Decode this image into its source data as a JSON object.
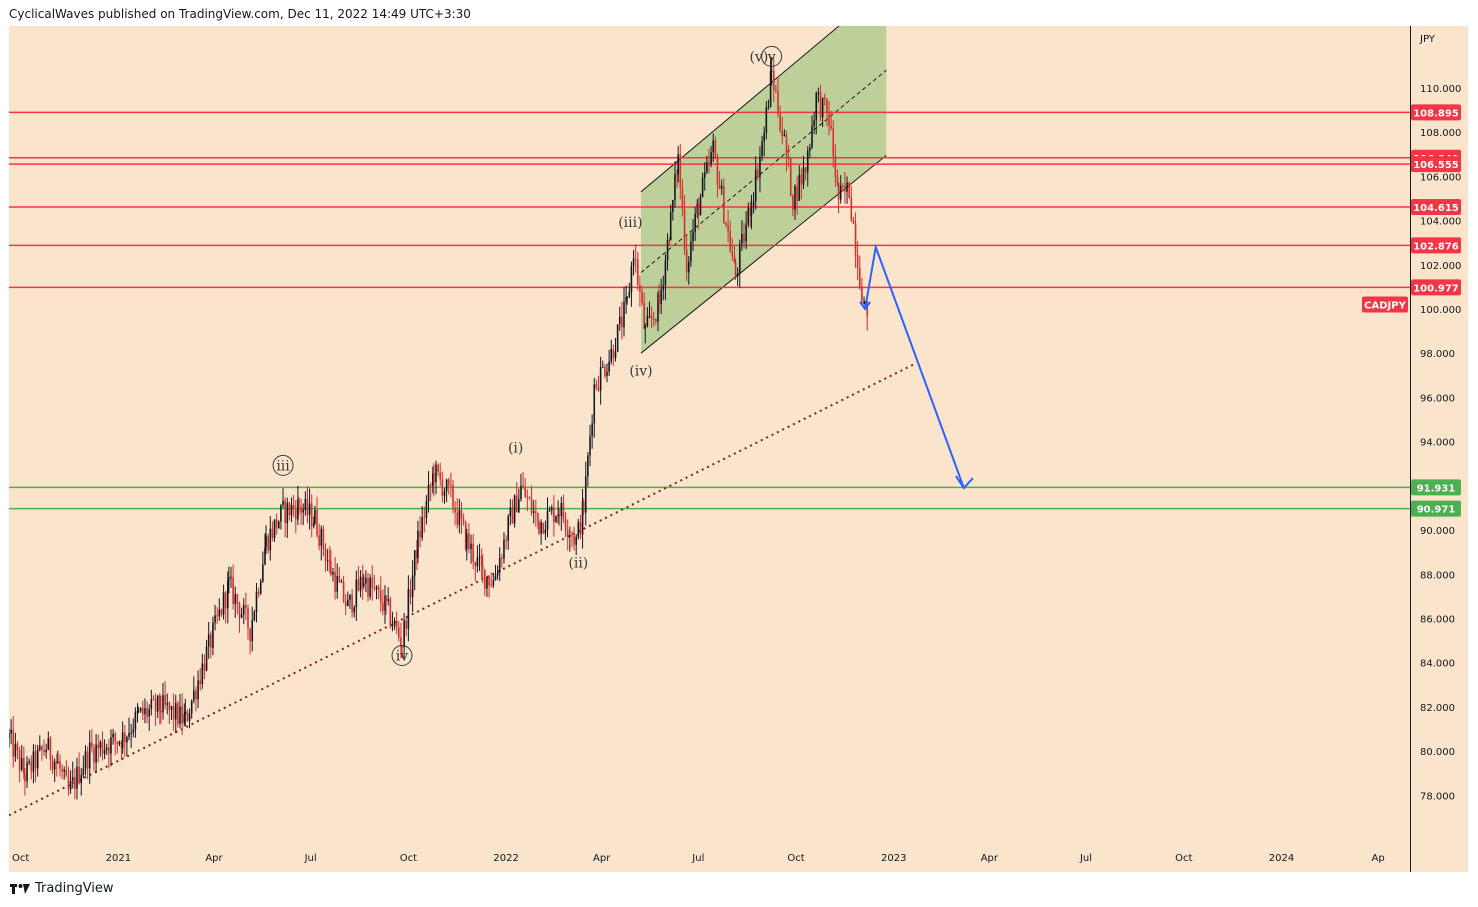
{
  "header": {
    "text": "CyclicalWaves published on TradingView.com, Dec 11, 2022 14:49 UTC+3:30"
  },
  "footer": {
    "brand": "TradingView"
  },
  "colors": {
    "background": "#fae4cc",
    "resistance_line": "#f23645",
    "support_line": "#4caf50",
    "projection_arrow": "#2962ff",
    "trendline": "#8b1a1a",
    "channel_fill": "#a8c98a",
    "bull_candle": "#131722",
    "bear_candle": "#d32f2f"
  },
  "chart_data": {
    "type": "candlestick",
    "symbol": "CADJPY",
    "currency": "JPY",
    "last_price_label": "CADJPY",
    "y_axis": {
      "range": [
        75.8,
        112.8
      ],
      "ticks": [
        "78.000",
        "80.000",
        "82.000",
        "84.000",
        "86.000",
        "88.000",
        "90.000",
        "94.000",
        "96.000",
        "98.000",
        "100.000",
        "102.000",
        "104.000",
        "106.000",
        "108.000",
        "110.000"
      ],
      "tick_values": [
        78,
        80,
        82,
        84,
        86,
        88,
        90,
        94,
        96,
        98,
        100,
        102,
        104,
        106,
        108,
        110
      ]
    },
    "x_axis": {
      "range": [
        "2020-09-20",
        "2024-05-01"
      ],
      "ticks": [
        {
          "label": "Oct",
          "date": "2020-10-01"
        },
        {
          "label": "2021",
          "date": "2021-01-01"
        },
        {
          "label": "Apr",
          "date": "2021-04-01"
        },
        {
          "label": "Jul",
          "date": "2021-07-01"
        },
        {
          "label": "Oct",
          "date": "2021-10-01"
        },
        {
          "label": "2022",
          "date": "2022-01-01"
        },
        {
          "label": "Apr",
          "date": "2022-04-01"
        },
        {
          "label": "Jul",
          "date": "2022-07-01"
        },
        {
          "label": "Oct",
          "date": "2022-10-01"
        },
        {
          "label": "2023",
          "date": "2023-01-01"
        },
        {
          "label": "Apr",
          "date": "2023-04-01"
        },
        {
          "label": "Jul",
          "date": "2023-07-01"
        },
        {
          "label": "Oct",
          "date": "2023-10-01"
        },
        {
          "label": "2024",
          "date": "2024-01-01"
        },
        {
          "label": "Ap",
          "date": "2024-04-01"
        }
      ]
    },
    "price_path": [
      [
        "2020-09-20",
        80.6
      ],
      [
        "2020-10-05",
        78.9
      ],
      [
        "2020-10-25",
        80.2
      ],
      [
        "2020-11-05",
        79.4
      ],
      [
        "2020-11-15",
        78.1
      ],
      [
        "2020-12-05",
        80.0
      ],
      [
        "2021-01-05",
        80.6
      ],
      [
        "2021-01-20",
        81.6
      ],
      [
        "2021-02-10",
        82.0
      ],
      [
        "2021-03-05",
        81.4
      ],
      [
        "2021-03-25",
        84.4
      ],
      [
        "2021-04-15",
        87.5
      ],
      [
        "2021-05-05",
        85.5
      ],
      [
        "2021-05-20",
        89.5
      ],
      [
        "2021-06-05",
        90.8
      ],
      [
        "2021-06-20",
        91.1
      ],
      [
        "2021-07-05",
        90.5
      ],
      [
        "2021-07-20",
        88.2
      ],
      [
        "2021-08-05",
        86.5
      ],
      [
        "2021-08-20",
        87.8
      ],
      [
        "2021-09-10",
        86.5
      ],
      [
        "2021-09-25",
        84.9
      ],
      [
        "2021-10-10",
        89.5
      ],
      [
        "2021-10-25",
        92.6
      ],
      [
        "2021-11-10",
        91.5
      ],
      [
        "2021-11-25",
        89.5
      ],
      [
        "2021-12-10",
        88.0
      ],
      [
        "2021-12-20",
        87.7
      ],
      [
        "2022-01-05",
        90.5
      ],
      [
        "2022-01-15",
        91.9
      ],
      [
        "2022-02-01",
        90.3
      ],
      [
        "2022-02-20",
        91.0
      ],
      [
        "2022-03-08",
        89.5
      ],
      [
        "2022-03-15",
        91.0
      ],
      [
        "2022-03-25",
        96.5
      ],
      [
        "2022-04-10",
        98.0
      ],
      [
        "2022-04-25",
        100.2
      ],
      [
        "2022-05-01",
        102.7
      ],
      [
        "2022-05-12",
        98.9
      ],
      [
        "2022-05-25",
        100.2
      ],
      [
        "2022-06-05",
        104.0
      ],
      [
        "2022-06-12",
        106.8
      ],
      [
        "2022-06-20",
        102.0
      ],
      [
        "2022-07-01",
        104.7
      ],
      [
        "2022-07-15",
        107.2
      ],
      [
        "2022-07-25",
        104.5
      ],
      [
        "2022-08-05",
        101.5
      ],
      [
        "2022-08-20",
        104.9
      ],
      [
        "2022-09-01",
        108.0
      ],
      [
        "2022-09-08",
        110.7
      ],
      [
        "2022-09-20",
        107.5
      ],
      [
        "2022-09-28",
        105.0
      ],
      [
        "2022-10-10",
        106.4
      ],
      [
        "2022-10-20",
        109.6
      ],
      [
        "2022-11-01",
        108.6
      ],
      [
        "2022-11-10",
        105.0
      ],
      [
        "2022-11-20",
        105.4
      ],
      [
        "2022-11-28",
        102.2
      ],
      [
        "2022-12-05",
        99.8
      ],
      [
        "2022-12-09",
        100.3
      ]
    ],
    "horizontal_levels": [
      {
        "value": 108.895,
        "label": "108.895",
        "kind": "resistance"
      },
      {
        "value": 106.84,
        "label": "106.840",
        "kind": "resistance"
      },
      {
        "value": 106.555,
        "label": "106.555",
        "kind": "resistance"
      },
      {
        "value": 104.615,
        "label": "104.615",
        "kind": "resistance"
      },
      {
        "value": 102.876,
        "label": "102.876",
        "kind": "resistance"
      },
      {
        "value": 100.977,
        "label": "100.977",
        "kind": "resistance"
      },
      {
        "value": 91.931,
        "label": "91.931",
        "kind": "support"
      },
      {
        "value": 90.971,
        "label": "90.971",
        "kind": "support"
      }
    ],
    "current_price": 100.2,
    "trendline": {
      "from": [
        "2020-09-20",
        77.1
      ],
      "to": [
        "2023-01-20",
        97.5
      ]
    },
    "channel": {
      "start": "2022-05-08",
      "end": "2022-12-25",
      "lower": [
        [
          98.0
        ],
        [
          106.95
        ]
      ],
      "upper": [
        [
          105.3
        ],
        [
          114.6
        ]
      ],
      "mid": [
        [
          101.65
        ],
        [
          110.8
        ]
      ]
    },
    "projection": [
      [
        "2022-12-05",
        100.0
      ],
      [
        "2022-12-15",
        102.8
      ],
      [
        "2023-03-08",
        91.9
      ]
    ],
    "wave_labels": [
      {
        "text": "iii",
        "circled": true,
        "date": "2021-06-05",
        "value": 92.7
      },
      {
        "text": "iv",
        "circled": true,
        "date": "2021-09-25",
        "value": 84.1
      },
      {
        "text": "(i)",
        "circled": false,
        "date": "2022-01-10",
        "value": 93.5
      },
      {
        "text": "(ii)",
        "circled": false,
        "date": "2022-03-10",
        "value": 88.3
      },
      {
        "text": "(iii)",
        "circled": false,
        "date": "2022-04-28",
        "value": 103.7
      },
      {
        "text": "(iv)",
        "circled": false,
        "date": "2022-05-08",
        "value": 97.0
      },
      {
        "text": "(v)",
        "circled": false,
        "date": "2022-08-27",
        "value": 111.2
      },
      {
        "text": "v",
        "circled": true,
        "date": "2022-09-08",
        "value": 111.2
      }
    ]
  }
}
